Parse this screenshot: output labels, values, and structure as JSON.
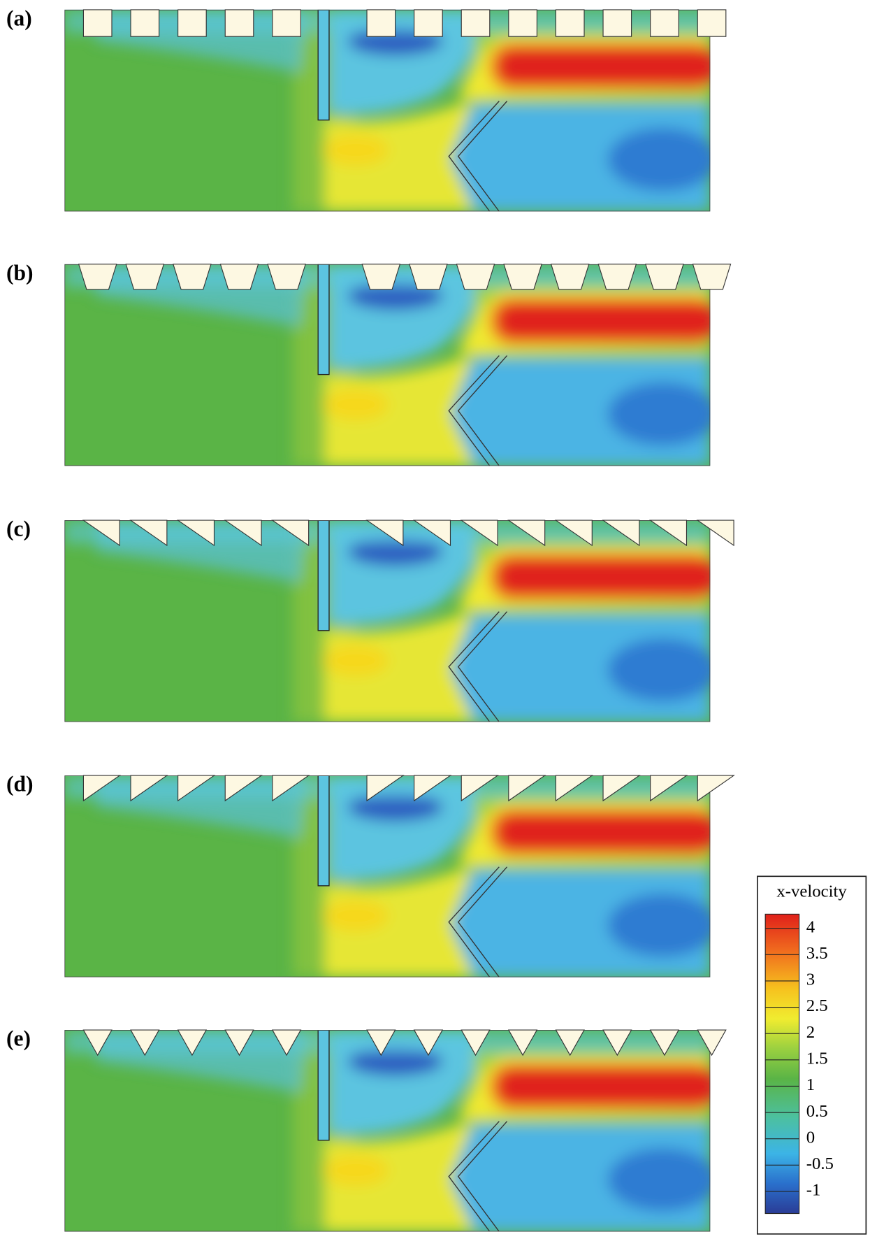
{
  "panels": [
    {
      "label": "(a)"
    },
    {
      "label": "(b)"
    },
    {
      "label": "(c)"
    },
    {
      "label": "(d)"
    },
    {
      "label": "(e)"
    }
  ],
  "legend": {
    "title": "x-velocity",
    "ticks": [
      4,
      3.5,
      3,
      2.5,
      2,
      1.5,
      1,
      0.5,
      0,
      -0.5,
      -1
    ]
  }
}
